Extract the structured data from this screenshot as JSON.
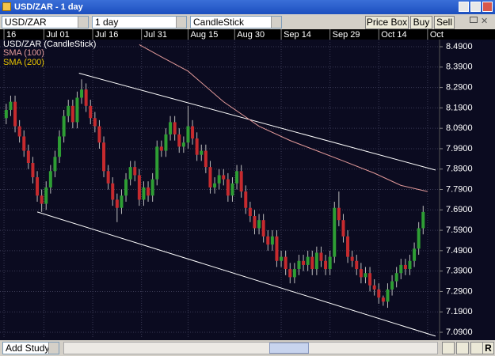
{
  "window": {
    "title": "USD/ZAR - 1 day"
  },
  "toolbar": {
    "symbol": "USD/ZAR",
    "interval": "1 day",
    "chart_style": "CandleStick",
    "buttons": [
      "Price Box",
      "Buy",
      "Sell"
    ]
  },
  "bottom_bar": {
    "add_study": "Add Study",
    "reset": "R"
  },
  "chart_data": {
    "type": "candlestick",
    "title": "USD/ZAR (CandleStick)",
    "up_color": "#2e9e34",
    "down_color": "#c62a2e",
    "grid": true,
    "xlim": [
      -1.4,
      97.7
    ],
    "xticks": [
      {
        "value": -0.5,
        "label": "16"
      },
      {
        "value": 8.5,
        "label": "Jul 01"
      },
      {
        "value": 19.5,
        "label": "Jul 16"
      },
      {
        "value": 30.5,
        "label": "Jul 31"
      },
      {
        "value": 41,
        "label": "Aug 15"
      },
      {
        "value": 51.5,
        "label": "Aug 30"
      },
      {
        "value": 62,
        "label": "Sep 14"
      },
      {
        "value": 73,
        "label": "Sep 29"
      },
      {
        "value": 84,
        "label": "Oct 14"
      },
      {
        "value": 95,
        "label": "Oct"
      }
    ],
    "ylim": [
      7.059,
      8.525
    ],
    "yticks": [
      {
        "value": 8.49,
        "label": "8.4900"
      },
      {
        "value": 8.39,
        "label": "8.3900"
      },
      {
        "value": 8.29,
        "label": "8.2900"
      },
      {
        "value": 8.19,
        "label": "8.1900"
      },
      {
        "value": 8.09,
        "label": "8.0900"
      },
      {
        "value": 7.99,
        "label": "7.9900"
      },
      {
        "value": 7.89,
        "label": "7.8900"
      },
      {
        "value": 7.79,
        "label": "7.7900"
      },
      {
        "value": 7.69,
        "label": "7.6900"
      },
      {
        "value": 7.59,
        "label": "7.5900"
      },
      {
        "value": 7.49,
        "label": "7.4900"
      },
      {
        "value": 7.39,
        "label": "7.3900"
      },
      {
        "value": 7.29,
        "label": "7.2900"
      },
      {
        "value": 7.19,
        "label": "7.1900"
      },
      {
        "value": 7.09,
        "label": "7.0900"
      }
    ],
    "open": [
      8.14,
      8.18,
      8.22,
      8.1,
      8.05,
      7.98,
      7.92,
      7.85,
      7.76,
      7.72,
      7.8,
      7.88,
      7.95,
      8.05,
      8.15,
      8.2,
      8.12,
      8.24,
      8.28,
      8.2,
      8.14,
      8.1,
      8.02,
      7.88,
      7.82,
      7.74,
      7.7,
      7.76,
      7.84,
      7.9,
      7.86,
      7.74,
      7.8,
      7.76,
      7.84,
      8.0,
      7.98,
      8.06,
      8.12,
      8.06,
      8.0,
      8.02,
      8.1,
      8.04,
      7.96,
      7.98,
      7.9,
      7.8,
      7.82,
      7.86,
      7.84,
      7.76,
      7.82,
      7.88,
      7.78,
      7.7,
      7.66,
      7.6,
      7.64,
      7.56,
      7.52,
      7.56,
      7.44,
      7.46,
      7.4,
      7.36,
      7.4,
      7.44,
      7.42,
      7.46,
      7.4,
      7.48,
      7.44,
      7.4,
      7.46,
      7.7,
      7.64,
      7.56,
      7.46,
      7.44,
      7.4,
      7.36,
      7.38,
      7.32,
      7.3,
      7.26,
      7.24,
      7.3,
      7.34,
      7.38,
      7.42,
      7.4,
      7.44,
      7.5,
      7.6
    ],
    "high": [
      8.21,
      8.25,
      8.25,
      8.13,
      8.08,
      8.01,
      7.95,
      7.88,
      7.79,
      7.83,
      7.91,
      7.98,
      8.08,
      8.18,
      8.23,
      8.23,
      8.27,
      8.33,
      8.31,
      8.23,
      8.17,
      8.13,
      8.05,
      7.91,
      7.85,
      7.77,
      7.79,
      7.87,
      7.93,
      7.93,
      7.89,
      7.83,
      7.83,
      7.87,
      8.03,
      8.03,
      8.09,
      8.15,
      8.15,
      8.09,
      8.05,
      8.2,
      8.13,
      8.07,
      8.01,
      8.01,
      7.93,
      7.85,
      7.89,
      7.89,
      7.87,
      7.85,
      7.91,
      7.91,
      7.81,
      7.73,
      7.69,
      7.67,
      7.67,
      7.59,
      7.59,
      7.59,
      7.49,
      7.49,
      7.43,
      7.43,
      7.47,
      7.47,
      7.49,
      7.49,
      7.51,
      7.51,
      7.47,
      7.49,
      7.73,
      7.78,
      7.67,
      7.59,
      7.49,
      7.47,
      7.43,
      7.41,
      7.41,
      7.35,
      7.33,
      7.27,
      7.33,
      7.37,
      7.41,
      7.45,
      7.45,
      7.47,
      7.53,
      7.63,
      7.71
    ],
    "low": [
      8.11,
      8.15,
      8.07,
      8.02,
      7.95,
      7.89,
      7.82,
      7.73,
      7.68,
      7.69,
      7.77,
      7.85,
      7.92,
      8.02,
      8.12,
      8.09,
      8.09,
      8.21,
      8.17,
      8.11,
      8.07,
      7.99,
      7.85,
      7.79,
      7.71,
      7.63,
      7.67,
      7.73,
      7.81,
      7.83,
      7.71,
      7.71,
      7.73,
      7.73,
      7.81,
      7.95,
      7.95,
      8.03,
      8.03,
      7.97,
      7.97,
      7.99,
      8.01,
      7.93,
      7.93,
      7.87,
      7.77,
      7.77,
      7.79,
      7.81,
      7.73,
      7.73,
      7.79,
      7.75,
      7.67,
      7.63,
      7.57,
      7.57,
      7.53,
      7.49,
      7.49,
      7.41,
      7.41,
      7.37,
      7.33,
      7.33,
      7.37,
      7.39,
      7.39,
      7.37,
      7.37,
      7.41,
      7.37,
      7.37,
      7.43,
      7.61,
      7.53,
      7.43,
      7.41,
      7.37,
      7.33,
      7.33,
      7.29,
      7.27,
      7.23,
      7.22,
      7.21,
      7.27,
      7.31,
      7.35,
      7.37,
      7.37,
      7.41,
      7.47,
      7.57
    ],
    "close": [
      8.18,
      8.22,
      8.1,
      8.05,
      7.98,
      7.92,
      7.85,
      7.76,
      7.72,
      7.8,
      7.88,
      7.95,
      8.05,
      8.15,
      8.2,
      8.12,
      8.24,
      8.28,
      8.2,
      8.14,
      8.1,
      8.02,
      7.88,
      7.82,
      7.74,
      7.7,
      7.76,
      7.84,
      7.9,
      7.86,
      7.74,
      7.8,
      7.76,
      7.84,
      8.0,
      7.98,
      8.06,
      8.12,
      8.06,
      8.0,
      8.02,
      8.1,
      8.04,
      7.96,
      7.98,
      7.9,
      7.8,
      7.82,
      7.86,
      7.84,
      7.76,
      7.82,
      7.88,
      7.78,
      7.7,
      7.66,
      7.6,
      7.64,
      7.56,
      7.52,
      7.56,
      7.44,
      7.46,
      7.4,
      7.36,
      7.4,
      7.44,
      7.42,
      7.46,
      7.4,
      7.48,
      7.44,
      7.4,
      7.46,
      7.7,
      7.64,
      7.56,
      7.46,
      7.44,
      7.4,
      7.36,
      7.38,
      7.32,
      7.3,
      7.26,
      7.24,
      7.3,
      7.34,
      7.38,
      7.42,
      7.4,
      7.44,
      7.5,
      7.6,
      7.68
    ],
    "indicators": [
      {
        "name": "SMA (100)",
        "color": "#e39a9a",
        "x": [
          30,
          35,
          41,
          49,
          57,
          64,
          70,
          76,
          83,
          89,
          95
        ],
        "values": [
          8.5,
          8.44,
          8.37,
          8.22,
          8.1,
          8.03,
          7.98,
          7.93,
          7.87,
          7.81,
          7.78
        ]
      },
      {
        "name": "SMA (200)",
        "color": "#e8c400"
      }
    ],
    "trendlines": [
      {
        "color": "#ffffff",
        "x": [
          16.4,
          96.8
        ],
        "values": [
          8.36,
          7.885
        ]
      },
      {
        "color": "#ffffff",
        "x": [
          7,
          96.8
        ],
        "values": [
          7.68,
          7.071
        ]
      }
    ]
  }
}
